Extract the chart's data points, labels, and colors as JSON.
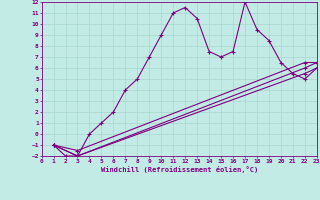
{
  "xlabel": "Windchill (Refroidissement éolien,°C)",
  "background_color": "#c2ebe5",
  "line_color": "#800080",
  "grid_color": "#a8d8d0",
  "xlim": [
    0,
    23
  ],
  "ylim": [
    -2,
    12
  ],
  "xticks": [
    0,
    1,
    2,
    3,
    4,
    5,
    6,
    7,
    8,
    9,
    10,
    11,
    12,
    13,
    14,
    15,
    16,
    17,
    18,
    19,
    20,
    21,
    22,
    23
  ],
  "yticks": [
    -2,
    -1,
    0,
    1,
    2,
    3,
    4,
    5,
    6,
    7,
    8,
    9,
    10,
    11,
    12
  ],
  "series": [
    {
      "x": [
        1,
        2,
        3,
        4,
        5,
        6,
        7,
        8,
        9,
        10,
        11,
        12,
        13,
        14,
        15,
        16,
        17,
        18,
        19,
        20,
        21,
        22,
        23
      ],
      "y": [
        -1,
        -2,
        -2,
        0,
        1,
        2,
        4,
        5,
        7,
        9,
        11,
        11.5,
        10.5,
        7.5,
        7,
        7.5,
        12,
        9.5,
        8.5,
        6.5,
        5.5,
        5,
        6
      ]
    },
    {
      "x": [
        1,
        3,
        22,
        23
      ],
      "y": [
        -1,
        -2,
        5.5,
        6.0
      ]
    },
    {
      "x": [
        1,
        3,
        22,
        23
      ],
      "y": [
        -1,
        -2,
        6.0,
        6.5
      ]
    },
    {
      "x": [
        1,
        3,
        22,
        23
      ],
      "y": [
        -1,
        -1.5,
        6.5,
        6.5
      ]
    }
  ]
}
